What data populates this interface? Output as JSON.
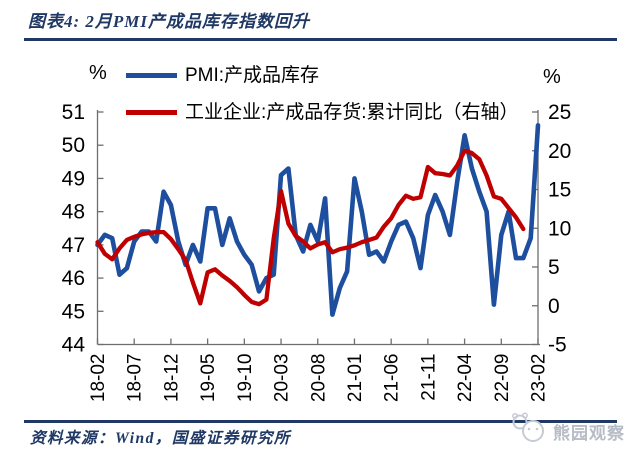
{
  "header": {
    "title": "图表4: 2月PMI产成品库存指数回升"
  },
  "legend": [
    {
      "label": "PMI:产成品库存",
      "color": "#1d4f9e"
    },
    {
      "label": "工业企业:产成品存货:累计同比（右轴）",
      "color": "#c00000"
    }
  ],
  "footer": {
    "source": "资料来源：Wind，国盛证券研究所"
  },
  "watermark": {
    "text": "熊园观察"
  },
  "chart_data": {
    "type": "line",
    "title": "图表4: 2月PMI产成品库存指数回升",
    "grid": false,
    "legend_position": "top-left",
    "left_axis": {
      "unit": "%",
      "min": 44,
      "max": 51,
      "ticks": [
        51,
        50,
        49,
        48,
        47,
        46,
        45,
        44
      ]
    },
    "right_axis": {
      "unit": "%",
      "min": -5,
      "max": 25,
      "ticks": [
        25,
        20,
        15,
        10,
        5,
        0,
        -5
      ]
    },
    "x_tick_labels": [
      "18-02",
      "18-07",
      "18-12",
      "19-05",
      "19-10",
      "20-03",
      "20-08",
      "21-01",
      "21-06",
      "21-11",
      "22-04",
      "22-09",
      "23-02"
    ],
    "x_tick_every": 5,
    "categories": [
      "18-02",
      "18-03",
      "18-04",
      "18-05",
      "18-06",
      "18-07",
      "18-08",
      "18-09",
      "18-10",
      "18-11",
      "18-12",
      "19-01",
      "19-02",
      "19-03",
      "19-04",
      "19-05",
      "19-06",
      "19-07",
      "19-08",
      "19-09",
      "19-10",
      "19-11",
      "19-12",
      "20-01",
      "20-02",
      "20-03",
      "20-04",
      "20-05",
      "20-06",
      "20-07",
      "20-08",
      "20-09",
      "20-10",
      "20-11",
      "20-12",
      "21-01",
      "21-02",
      "21-03",
      "21-04",
      "21-05",
      "21-06",
      "21-07",
      "21-08",
      "21-09",
      "21-10",
      "21-11",
      "21-12",
      "22-01",
      "22-02",
      "22-03",
      "22-04",
      "22-05",
      "22-06",
      "22-07",
      "22-08",
      "22-09",
      "22-10",
      "22-11",
      "22-12",
      "23-01",
      "23-02"
    ],
    "series": [
      {
        "name": "PMI:产成品库存",
        "axis": "left",
        "color": "#1d4f9e",
        "values": [
          47.0,
          47.3,
          47.2,
          46.1,
          46.3,
          47.1,
          47.4,
          47.4,
          47.1,
          48.6,
          48.2,
          47.1,
          46.4,
          47.0,
          46.5,
          48.1,
          48.1,
          47.0,
          47.8,
          47.1,
          46.7,
          46.4,
          45.6,
          46.0,
          46.1,
          49.1,
          49.3,
          47.3,
          46.8,
          47.6,
          47.1,
          48.4,
          44.9,
          45.7,
          46.2,
          49.0,
          48.0,
          46.7,
          46.8,
          46.5,
          47.1,
          47.6,
          47.7,
          47.2,
          46.3,
          47.9,
          48.5,
          48.0,
          47.3,
          48.9,
          50.3,
          49.3,
          48.6,
          48.0,
          45.2,
          47.3,
          48.0,
          46.6,
          46.6,
          47.2,
          50.6
        ]
      },
      {
        "name": "工业企业:产成品存货:累计同比（右轴）",
        "axis": "right",
        "color": "#c00000",
        "values": [
          8.2,
          6.7,
          6.0,
          7.4,
          8.5,
          8.9,
          9.2,
          9.4,
          9.5,
          9.5,
          8.6,
          7.3,
          5.9,
          3.0,
          0.3,
          4.3,
          4.7,
          3.9,
          3.2,
          2.4,
          1.4,
          0.5,
          0.2,
          0.8,
          8.7,
          14.8,
          10.6,
          9.0,
          8.3,
          7.4,
          7.9,
          8.2,
          6.9,
          7.3,
          7.5,
          7.8,
          8.2,
          8.5,
          8.8,
          10.2,
          11.3,
          13.0,
          14.2,
          13.8,
          14.0,
          17.9,
          17.1,
          17.0,
          16.8,
          18.1,
          20.0,
          19.7,
          18.9,
          16.8,
          14.1,
          13.8,
          12.6,
          11.4,
          9.9,
          null,
          null
        ]
      }
    ]
  }
}
